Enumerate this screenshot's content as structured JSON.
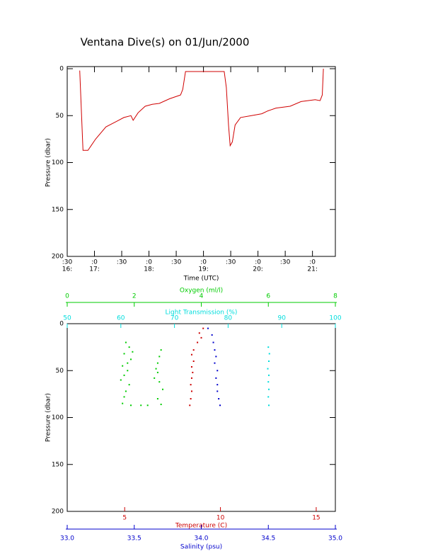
{
  "chart_data": [
    {
      "type": "line",
      "title": "Ventana Dive(s) on 01/Jun/2000",
      "xlabel": "Time (UTC)",
      "ylabel": "Pressure (dbar)",
      "color": "#d00000",
      "x": [
        16.73,
        16.79,
        16.88,
        17.02,
        17.21,
        17.41,
        17.54,
        17.67,
        17.71,
        17.8,
        17.93,
        18.06,
        18.19,
        18.38,
        18.58,
        18.62,
        18.67,
        19.38,
        19.42,
        19.46,
        19.49,
        19.53,
        19.58,
        19.68,
        19.88,
        20.07,
        20.18,
        20.33,
        20.59,
        20.79,
        21.05,
        21.14,
        21.18,
        21.2
      ],
      "values": [
        2,
        87,
        87,
        75,
        62,
        56,
        52,
        50,
        55,
        47,
        40,
        38,
        37,
        32,
        28,
        22,
        3,
        3,
        20,
        60,
        82,
        78,
        60,
        52,
        50,
        48,
        45,
        42,
        40,
        35,
        33,
        34,
        28,
        0
      ],
      "xlim": [
        16.5,
        21.42
      ],
      "ylim": [
        200,
        0
      ],
      "xticks": [
        {
          "value": 16.5,
          "label": ":30",
          "hour": "16:"
        },
        {
          "value": 17,
          "label": ":0",
          "hour": "17:"
        },
        {
          "value": 17.5,
          "label": ":30"
        },
        {
          "value": 18,
          "label": ":0",
          "hour": "18:"
        },
        {
          "value": 18.5,
          "label": ":30"
        },
        {
          "value": 19,
          "label": ":0",
          "hour": "19:"
        },
        {
          "value": 19.5,
          "label": ":30"
        },
        {
          "value": 20,
          "label": ":0",
          "hour": "20:"
        },
        {
          "value": 20.5,
          "label": ":30"
        },
        {
          "value": 21,
          "label": ":0",
          "hour": "21:"
        }
      ],
      "yticks": [
        0,
        50,
        100,
        150,
        200
      ]
    },
    {
      "type": "scatter",
      "ylabel": "Pressure (dbar)",
      "ylim": [
        200,
        0
      ],
      "yticks": [
        0,
        50,
        100,
        150,
        200
      ],
      "x_axes": [
        {
          "label": "Oxygen (ml/l)",
          "color": "#00cc00",
          "xlim": [
            0,
            8
          ],
          "xticks": [
            0,
            2,
            4,
            6,
            8
          ]
        },
        {
          "label": "Light Transmission (%)",
          "color": "#00dddd",
          "xlim": [
            50,
            100
          ],
          "xticks": [
            50,
            60,
            70,
            80,
            90,
            100
          ]
        },
        {
          "label": "Temperature (C)",
          "color": "#cc0000",
          "xlim": [
            2,
            16
          ],
          "xticks": [
            5,
            10,
            15
          ]
        },
        {
          "label": "Salinity (psu)",
          "color": "#0000cc",
          "xlim": [
            33,
            35
          ],
          "xticks": [
            {
              "value": 33,
              "label": "33.0"
            },
            33.5,
            {
              "value": 34,
              "label": "34.0"
            },
            34.5,
            {
              "value": 35,
              "label": "35.0"
            }
          ]
        }
      ],
      "series": [
        {
          "color": "#00cc00",
          "axis": 0,
          "x": [
            1.75,
            1.85,
            1.7,
            1.9,
            1.65,
            1.8,
            1.7,
            1.6,
            1.85,
            1.75,
            1.7,
            1.65,
            1.9,
            1.8,
            1.95,
            2.8,
            2.75,
            2.7,
            2.65,
            2.7,
            2.6,
            2.75,
            2.85,
            2.7,
            2.8,
            2.2,
            2.4
          ],
          "values": [
            20,
            25,
            32,
            38,
            45,
            50,
            55,
            60,
            65,
            72,
            78,
            85,
            87,
            42,
            30,
            28,
            35,
            42,
            48,
            52,
            58,
            62,
            70,
            80,
            86,
            87,
            87
          ]
        },
        {
          "color": "#00dddd",
          "axis": 1,
          "x": [
            87.5,
            87.7,
            87.6,
            87.4,
            87.6,
            87.5,
            87.6,
            87.5,
            87.6
          ],
          "values": [
            25,
            32,
            40,
            48,
            55,
            62,
            70,
            78,
            87
          ]
        },
        {
          "color": "#cc0000",
          "axis": 2,
          "x": [
            9.1,
            8.9,
            9.0,
            8.8,
            8.6,
            8.5,
            8.6,
            8.5,
            8.55,
            8.5,
            8.45,
            8.5,
            8.45,
            8.4
          ],
          "values": [
            5,
            10,
            15,
            20,
            28,
            33,
            40,
            46,
            52,
            58,
            65,
            72,
            80,
            87
          ]
        },
        {
          "color": "#0000cc",
          "axis": 3,
          "x": [
            34.05,
            34.08,
            34.09,
            34.1,
            34.11,
            34.1,
            34.12,
            34.11,
            34.12,
            34.12,
            34.13,
            34.14
          ],
          "values": [
            5,
            12,
            20,
            28,
            35,
            42,
            50,
            58,
            65,
            72,
            80,
            87
          ]
        }
      ]
    }
  ]
}
